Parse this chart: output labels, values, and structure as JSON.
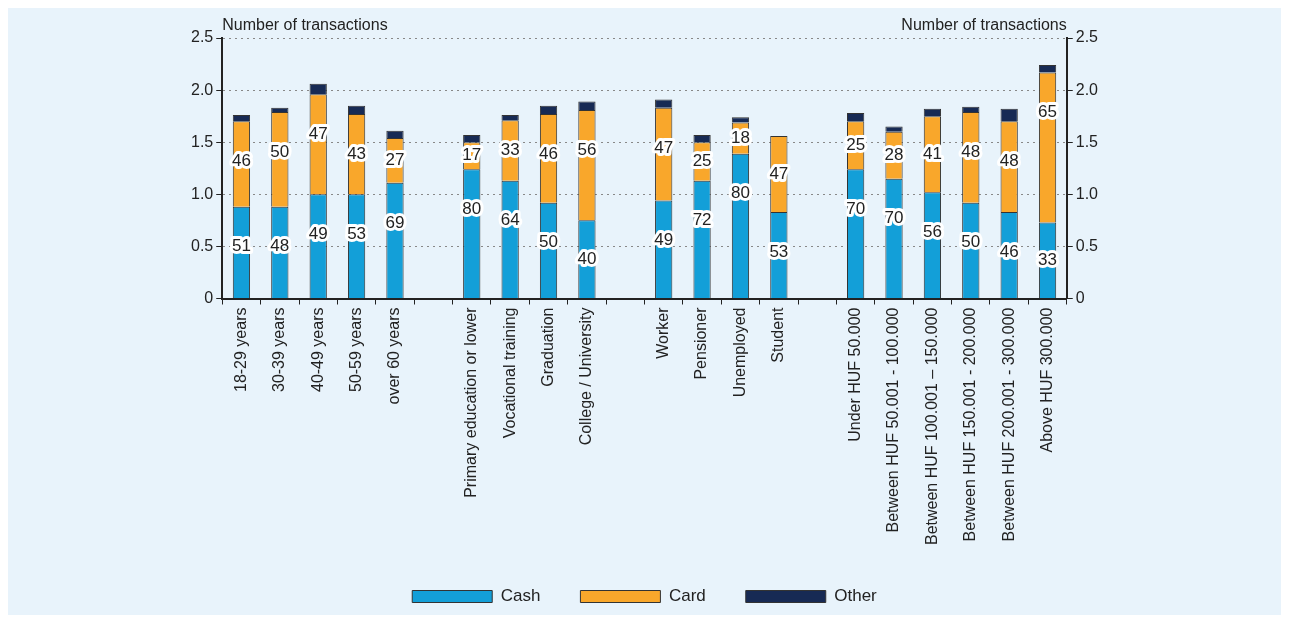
{
  "chart_data": {
    "type": "bar",
    "stacked": true,
    "ylabel": "Number of transactions",
    "y2label": "Number of transactions",
    "categories": [
      "18-29 years",
      "30-39 years",
      "40-49 years",
      "50-59 years",
      "over 60 years",
      null,
      "Primary education or lower",
      "Vocational training",
      "Graduation",
      "College / University",
      null,
      "Worker",
      "Pensioner",
      "Unemployed",
      "Student",
      null,
      "Under HUF 50.000",
      "Between HUF 50.001 - 100.000",
      "Between HUF 100.001 – 150.000",
      "Between HUF 150.001 - 200.000",
      "Between HUF 200.001 - 300.000",
      "Above HUF 300.000"
    ],
    "series": [
      {
        "name": "Cash",
        "color": "#139fd8",
        "values": [
          0.88,
          0.88,
          1.0,
          1.0,
          1.11,
          null,
          1.24,
          1.13,
          0.92,
          0.75,
          null,
          0.94,
          1.13,
          1.39,
          0.83,
          null,
          1.24,
          1.15,
          1.02,
          0.92,
          0.83,
          0.73
        ]
      },
      {
        "name": "Card",
        "color": "#f9a72b",
        "values": [
          0.82,
          0.91,
          0.96,
          0.77,
          0.43,
          null,
          0.26,
          0.58,
          0.85,
          1.06,
          null,
          0.89,
          0.37,
          0.3,
          0.73,
          null,
          0.46,
          0.45,
          0.73,
          0.87,
          0.87,
          1.44
        ]
      },
      {
        "name": "Other",
        "color": "#172a54",
        "values": [
          0.06,
          0.04,
          0.1,
          0.08,
          0.07,
          null,
          0.07,
          0.05,
          0.08,
          0.08,
          null,
          0.08,
          0.07,
          0.05,
          null,
          null,
          0.08,
          0.05,
          0.07,
          0.05,
          0.12,
          0.07
        ]
      }
    ],
    "ylim": [
      0,
      2.5
    ],
    "yticks": [
      0,
      {
        "value": 0.5,
        "label": "0.5"
      },
      {
        "value": 1,
        "label": "1.0"
      },
      {
        "value": 1.5,
        "label": "1.5"
      },
      {
        "value": 2,
        "label": "2.0"
      },
      {
        "value": 2.5,
        "label": "2.5"
      }
    ],
    "y2lim": [
      0,
      2.5
    ],
    "y2ticks": [
      0,
      {
        "value": 0.5,
        "label": "0.5"
      },
      {
        "value": 1,
        "label": "1.0"
      },
      {
        "value": 1.5,
        "label": "1.5"
      },
      {
        "value": 2,
        "label": "2.0"
      },
      {
        "value": 2.5,
        "label": "2.5"
      }
    ],
    "annotations": [
      {
        "text": "51",
        "x": "18-29 years",
        "y": 0.88
      },
      {
        "text": "48",
        "x": "30-39 years",
        "y": 0.88
      },
      {
        "text": "49",
        "x": "40-49 years",
        "y": 1.0
      },
      {
        "text": "53",
        "x": "50-59 years",
        "y": 1.0
      },
      {
        "text": "69",
        "x": "over 60 years",
        "y": 1.11
      },
      {
        "text": "80",
        "x": "Primary education or lower",
        "y": 1.24
      },
      {
        "text": "64",
        "x": "Vocational training",
        "y": 1.13
      },
      {
        "text": "50",
        "x": "Graduation",
        "y": 0.92
      },
      {
        "text": "40",
        "x": "College / University",
        "y": 0.75
      },
      {
        "text": "49",
        "x": "Worker",
        "y": 0.94
      },
      {
        "text": "72",
        "x": "Pensioner",
        "y": 1.13
      },
      {
        "text": "80",
        "x": "Unemployed",
        "y": 1.39
      },
      {
        "text": "53",
        "x": "Student",
        "y": 0.83
      },
      {
        "text": "70",
        "x": "Under HUF 50.000",
        "y": 1.24
      },
      {
        "text": "70",
        "x": "Between HUF 50.001 - 100.000",
        "y": 1.15
      },
      {
        "text": "56",
        "x": "Between HUF 100.001 – 150.000",
        "y": 1.02
      },
      {
        "text": "50",
        "x": "Between HUF 150.001 - 200.000",
        "y": 0.92
      },
      {
        "text": "46",
        "x": "Between HUF 200.001 - 300.000",
        "y": 0.83
      },
      {
        "text": "33",
        "x": "Above HUF 300.000",
        "y": 0.73
      },
      {
        "text": "46",
        "x": "18-29 years",
        "y": 1.7
      },
      {
        "text": "50",
        "x": "30-39 years",
        "y": 1.79
      },
      {
        "text": "47",
        "x": "40-49 years",
        "y": 1.96
      },
      {
        "text": "43",
        "x": "50-59 years",
        "y": 1.77
      },
      {
        "text": "27",
        "x": "over 60 years",
        "y": 1.54
      },
      {
        "text": "17",
        "x": "Primary education or lower",
        "y": 1.5
      },
      {
        "text": "33",
        "x": "Vocational training",
        "y": 1.71
      },
      {
        "text": "46",
        "x": "Graduation",
        "y": 1.77
      },
      {
        "text": "56",
        "x": "College / University",
        "y": 1.81
      },
      {
        "text": "47",
        "x": "Worker",
        "y": 1.83
      },
      {
        "text": "25",
        "x": "Pensioner",
        "y": 1.5
      },
      {
        "text": "18",
        "x": "Unemployed",
        "y": 1.69
      },
      {
        "text": "47",
        "x": "Student",
        "y": 1.56
      },
      {
        "text": "25",
        "x": "Under HUF 50.000",
        "y": 1.7
      },
      {
        "text": "28",
        "x": "Between HUF 50.001 - 100.000",
        "y": 1.6
      },
      {
        "text": "41",
        "x": "Between HUF 100.001 – 150.000",
        "y": 1.75
      },
      {
        "text": "48",
        "x": "Between HUF 150.001 - 200.000",
        "y": 1.79
      },
      {
        "text": "48",
        "x": "Between HUF 200.001 - 300.000",
        "y": 1.7
      },
      {
        "text": "65",
        "x": "Above HUF 300.000",
        "y": 2.17
      }
    ],
    "grid": "y",
    "legend": "bottom"
  }
}
